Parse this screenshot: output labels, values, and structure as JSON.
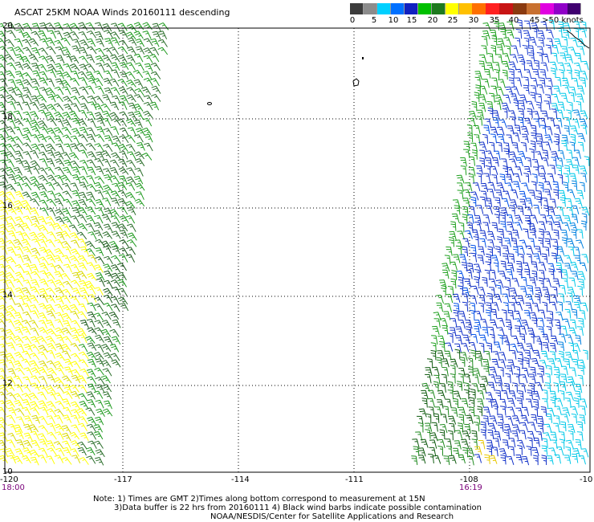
{
  "title": "ASCAT 25KM NOAA Winds 20160111 descending",
  "legend": {
    "labels": [
      "0",
      "5",
      "10",
      "15",
      "20",
      "25",
      "30",
      "35",
      "40",
      "45",
      ">50 knots"
    ],
    "colors": [
      "#3c3c3c",
      "#8c8c8c",
      "#00d0ff",
      "#0070ff",
      "#1020c0",
      "#00c000",
      "#1e7a1e",
      "#ffff00",
      "#ffc000",
      "#ff7000",
      "#ff2020",
      "#c81414",
      "#8a3a10",
      "#c87030",
      "#e000e0",
      "#9000c8",
      "#400070"
    ]
  },
  "map": {
    "lat_labels": [
      "20",
      "18",
      "16",
      "14",
      "12",
      "10"
    ],
    "lon_labels": [
      "-120",
      "-117",
      "-114",
      "-111",
      "-108",
      "-10"
    ],
    "times": [
      "18:00",
      "16:19"
    ]
  },
  "notes": {
    "line1": "Note: 1) Times are GMT 2)Times along bottom correspond to measurement at 15N",
    "line2": "3)Data buffer is 22 hrs from 20160111 4) Black wind barbs indicate possible contamination",
    "line3": "NOAA/NESDIS/Center for Satellite Applications and Research"
  }
}
